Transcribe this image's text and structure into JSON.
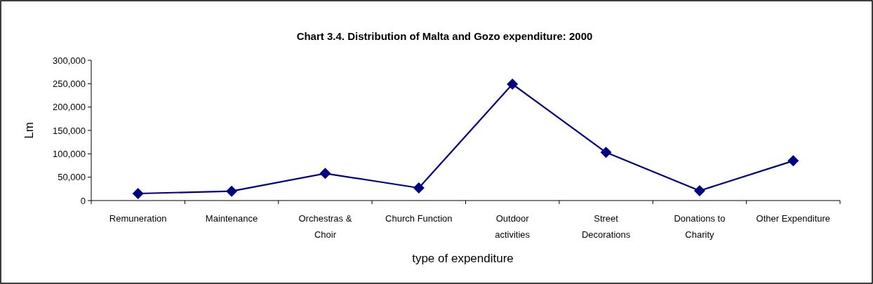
{
  "chart_data": {
    "type": "line",
    "title": "Chart 3.4.  Distribution of Malta and Gozo expenditure: 2000",
    "xlabel": "type of expenditure",
    "ylabel": "Lm",
    "categories": [
      "Remuneration",
      "Maintenance",
      "Orchestras & Choir",
      "Church Function",
      "Outdoor activities",
      "Street Decorations",
      "Donations to Charity",
      "Other Expenditure"
    ],
    "series": [
      {
        "color": "#000080",
        "values": [
          15000,
          20000,
          58000,
          27000,
          249000,
          103000,
          21000,
          85000
        ]
      }
    ],
    "ylim": [
      0,
      300000
    ],
    "yticks": [
      {
        "value": 0,
        "label": "0"
      },
      {
        "value": 50000,
        "label": "50,000"
      },
      {
        "value": 100000,
        "label": "100,000"
      },
      {
        "value": 150000,
        "label": "150,000"
      },
      {
        "value": 200000,
        "label": "200,000"
      },
      {
        "value": 250000,
        "label": "250,000"
      },
      {
        "value": 300000,
        "label": "300,000"
      }
    ],
    "grid": false,
    "marker": "diamond",
    "line_style": "solid"
  }
}
